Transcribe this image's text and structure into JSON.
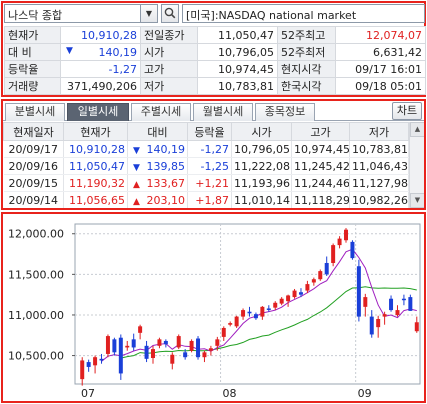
{
  "search": {
    "stock_name": "나스닥 종합",
    "market": "[미국]:NASDAQ national market"
  },
  "quote": {
    "rows": [
      {
        "l1": "현재가",
        "v1": "10,910,28",
        "c1": "blue",
        "l2": "전일종가",
        "v2": "11,050,47",
        "c2": "dark",
        "l3": "52주최고",
        "v3": "12,074,07",
        "c3": "red"
      },
      {
        "l1": "대  비",
        "v1": "140,19",
        "c1": "blue",
        "arrow1": "▼",
        "l2": "시가",
        "v2": "10,796,05",
        "c2": "dark",
        "l3": "52주최저",
        "v3": "6,631,42",
        "c3": "dark"
      },
      {
        "l1": "등락율",
        "v1": "-1,27",
        "c1": "blue",
        "l2": "고가",
        "v2": "10,974,45",
        "c2": "dark",
        "l3": "현지시각",
        "v3": "09/17 16:01",
        "c3": "dark"
      },
      {
        "l1": "거래량",
        "v1": "371,490,206",
        "c1": "dark",
        "l2": "저가",
        "v2": "10,783,81",
        "c2": "dark",
        "l3": "한국시각",
        "v3": "09/18 05:01",
        "c3": "dark"
      }
    ]
  },
  "tabs": [
    "분별시세",
    "일별시세",
    "주별시세",
    "월별시세",
    "종목정보"
  ],
  "chart_button": "차트",
  "daily_table": {
    "headers": [
      "현재일자",
      "현재가",
      "대비",
      "등락율",
      "시가",
      "고가",
      "저가"
    ],
    "rows": [
      {
        "date": "20/09/17",
        "price": "10,910,28",
        "arrow": "▼",
        "diff": "140,19",
        "rate": "-1,27",
        "open": "10,796,05",
        "high": "10,974,45",
        "low": "10,783,81",
        "color": "blue"
      },
      {
        "date": "20/09/16",
        "price": "11,050,47",
        "arrow": "▼",
        "diff": "139,85",
        "rate": "-1,25",
        "open": "11,222,08",
        "high": "11,245,42",
        "low": "11,046,43",
        "color": "blue"
      },
      {
        "date": "20/09/15",
        "price": "11,190,32",
        "arrow": "▲",
        "diff": "133,67",
        "rate": "+1,21",
        "open": "11,193,96",
        "high": "11,244,46",
        "low": "11,127,98",
        "color": "red"
      },
      {
        "date": "20/09/14",
        "price": "11,056,65",
        "arrow": "▲",
        "diff": "203,10",
        "rate": "+1,87",
        "open": "11,010,14",
        "high": "11,118,29",
        "low": "10,982,26",
        "color": "red"
      }
    ]
  },
  "chart_data": {
    "type": "candlestick",
    "y_ticks": [
      "12,000.00",
      "11,500.00",
      "11,000.00",
      "10,500.00"
    ],
    "y_tick_values": [
      12000,
      11500,
      11000,
      10500
    ],
    "ylim": [
      10150,
      12120
    ],
    "x_labels": [
      {
        "label": "07",
        "index": 0
      },
      {
        "label": "08",
        "index": 22
      },
      {
        "label": "09",
        "index": 43
      }
    ],
    "grid": true,
    "colors": {
      "up": "#e02020",
      "down": "#1a3fd8",
      "ma_short": "#a020c0",
      "ma_long": "#22a022",
      "grid": "#c8ccd2"
    },
    "candles": [
      [
        10210,
        10480,
        10130,
        10440
      ],
      [
        10420,
        10450,
        10300,
        10360
      ],
      [
        10380,
        10500,
        10280,
        10480
      ],
      [
        10460,
        10520,
        10400,
        10440
      ],
      [
        10520,
        10760,
        10480,
        10740
      ],
      [
        10700,
        10720,
        10500,
        10540
      ],
      [
        10720,
        10760,
        10200,
        10280
      ],
      [
        10600,
        10680,
        10560,
        10620
      ],
      [
        10700,
        10770,
        10560,
        10600
      ],
      [
        10780,
        10880,
        10700,
        10860
      ],
      [
        10620,
        10680,
        10420,
        10460
      ],
      [
        10470,
        10620,
        10400,
        10580
      ],
      [
        10620,
        10720,
        10590,
        10700
      ],
      [
        10680,
        10700,
        10600,
        10640
      ],
      [
        10400,
        10540,
        10330,
        10510
      ],
      [
        10600,
        10760,
        10580,
        10740
      ],
      [
        10540,
        10580,
        10450,
        10480
      ],
      [
        10560,
        10700,
        10540,
        10680
      ],
      [
        10710,
        10740,
        10450,
        10480
      ],
      [
        10480,
        10560,
        10420,
        10540
      ],
      [
        10560,
        10620,
        10500,
        10590
      ],
      [
        10620,
        10730,
        10560,
        10700
      ],
      [
        10730,
        10860,
        10680,
        10840
      ],
      [
        10880,
        10920,
        10860,
        10900
      ],
      [
        10860,
        10990,
        10840,
        10980
      ],
      [
        10980,
        11080,
        10940,
        11060
      ],
      [
        11040,
        11100,
        10980,
        11020
      ],
      [
        11010,
        11030,
        10940,
        10960
      ],
      [
        10980,
        11110,
        10940,
        11100
      ],
      [
        11080,
        11120,
        11040,
        11070
      ],
      [
        11090,
        11170,
        11060,
        11150
      ],
      [
        11140,
        11220,
        11120,
        11200
      ],
      [
        11170,
        11250,
        11100,
        11240
      ],
      [
        11220,
        11320,
        11200,
        11300
      ],
      [
        11280,
        11330,
        11220,
        11250
      ],
      [
        11300,
        11420,
        11270,
        11380
      ],
      [
        11400,
        11460,
        11360,
        11440
      ],
      [
        11440,
        11560,
        11420,
        11540
      ],
      [
        11640,
        11720,
        11480,
        11500
      ],
      [
        11640,
        11880,
        11600,
        11860
      ],
      [
        11860,
        11970,
        11820,
        11940
      ],
      [
        11920,
        12070,
        11890,
        12050
      ],
      [
        11900,
        11920,
        11680,
        11700
      ],
      [
        11600,
        11680,
        10920,
        10980
      ],
      [
        11100,
        11260,
        10980,
        11220
      ],
      [
        10980,
        11060,
        10720,
        10760
      ],
      [
        10850,
        10990,
        10720,
        10950
      ],
      [
        10980,
        11040,
        10880,
        11010
      ],
      [
        11200,
        11240,
        11040,
        11060
      ],
      [
        11000,
        11120,
        10980,
        11060
      ],
      [
        11200,
        11250,
        11120,
        11190
      ],
      [
        11220,
        11250,
        11050,
        11050
      ],
      [
        10800,
        10980,
        10780,
        10910
      ]
    ]
  }
}
